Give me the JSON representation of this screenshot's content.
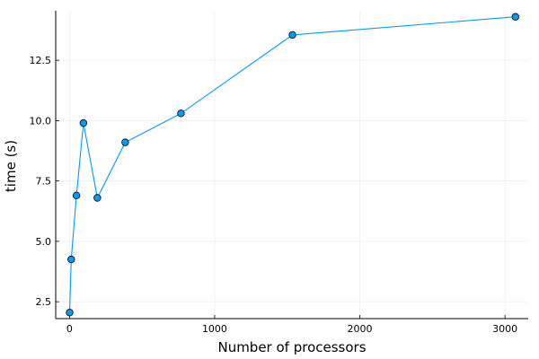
{
  "chart_data": {
    "type": "line",
    "title": "",
    "xlabel": "Number of processors",
    "ylabel": "time (s)",
    "xlim": [
      -95,
      3160
    ],
    "ylim": [
      1.8,
      14.55
    ],
    "x_ticks": [
      0,
      1000,
      2000,
      3000
    ],
    "x_tick_labels": [
      "0",
      "1000",
      "2000",
      "3000"
    ],
    "y_ticks": [
      2.5,
      5.0,
      7.5,
      10.0,
      12.5
    ],
    "y_tick_labels": [
      "2.5",
      "5.0",
      "7.5",
      "10.0",
      "12.5"
    ],
    "grid": true,
    "legend": "none",
    "series": [
      {
        "color": "#009AFA",
        "marker": "circle",
        "x": [
          1,
          12,
          48,
          96,
          192,
          384,
          768,
          1536,
          3072
        ],
        "y": [
          2.05,
          4.25,
          6.9,
          9.9,
          6.8,
          9.1,
          10.3,
          13.55,
          14.3
        ]
      }
    ]
  }
}
